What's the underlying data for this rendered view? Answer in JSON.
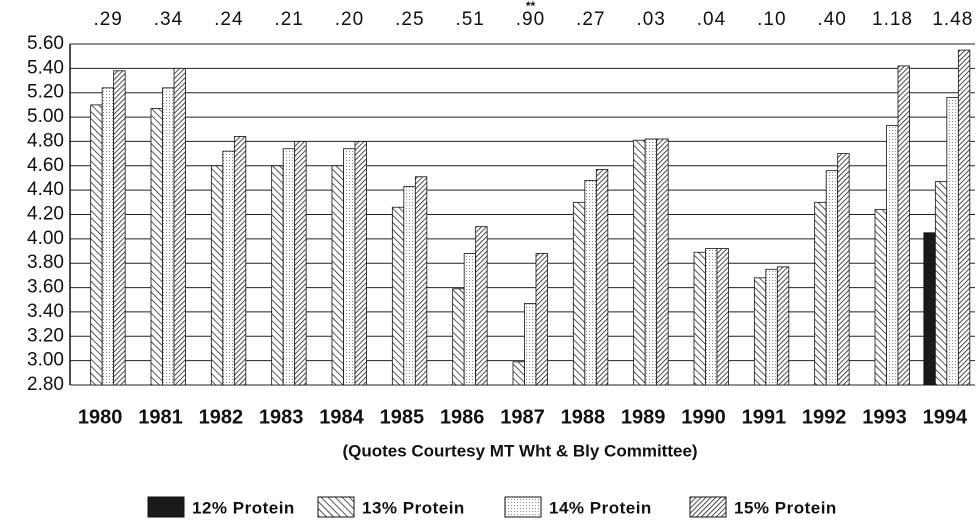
{
  "chart_data": {
    "type": "bar",
    "xlabel": "(Quotes Courtesy MT Wht & Bly Committee)",
    "categories": [
      "1980",
      "1981",
      "1982",
      "1983",
      "1984",
      "1985",
      "1986",
      "1987",
      "1988",
      "1989",
      "1990",
      "1991",
      "1992",
      "1993",
      "1994"
    ],
    "annotations": [
      ".29",
      ".34",
      ".24",
      ".21",
      ".20",
      ".25",
      ".51",
      ".90",
      ".27",
      ".03",
      ".04",
      ".10",
      ".40",
      "1.18",
      "1.48"
    ],
    "annotation_marks": [
      {
        "index": 7,
        "text": "**"
      }
    ],
    "series": [
      {
        "name": "12% Protein",
        "color": "#1a1a1a",
        "pattern": "solid",
        "values": [
          null,
          null,
          null,
          null,
          null,
          null,
          null,
          null,
          null,
          null,
          null,
          null,
          null,
          null,
          4.05
        ]
      },
      {
        "name": "13% Protein",
        "color": "#1a1a1a",
        "pattern": "hatch",
        "values": [
          5.1,
          5.07,
          4.6,
          4.6,
          4.6,
          4.26,
          3.59,
          2.99,
          4.3,
          4.81,
          3.89,
          3.68,
          4.3,
          4.24,
          4.47
        ]
      },
      {
        "name": "14% Protein",
        "color": "#1a1a1a",
        "pattern": "dots",
        "values": [
          5.24,
          5.24,
          4.72,
          4.74,
          4.74,
          4.43,
          3.88,
          3.47,
          4.48,
          4.82,
          3.92,
          3.75,
          4.56,
          4.93,
          5.16
        ]
      },
      {
        "name": "15% Protein",
        "color": "#1a1a1a",
        "pattern": "dense",
        "values": [
          5.38,
          5.4,
          4.84,
          4.8,
          4.8,
          4.51,
          4.1,
          3.88,
          4.57,
          4.82,
          3.92,
          3.77,
          4.7,
          5.42,
          5.55
        ]
      }
    ],
    "ylim": [
      2.8,
      5.6
    ],
    "yticks": [
      {
        "value": 2.8,
        "label": "2.80"
      },
      {
        "value": 3.0,
        "label": "3.00"
      },
      {
        "value": 3.2,
        "label": "3.20"
      },
      {
        "value": 3.4,
        "label": "3.40"
      },
      {
        "value": 3.6,
        "label": "3.60"
      },
      {
        "value": 3.8,
        "label": "3.80"
      },
      {
        "value": 4.0,
        "label": "4.00"
      },
      {
        "value": 4.2,
        "label": "4.20"
      },
      {
        "value": 4.4,
        "label": "4.40"
      },
      {
        "value": 4.6,
        "label": "4.60"
      },
      {
        "value": 4.8,
        "label": "4.80"
      },
      {
        "value": 5.0,
        "label": "5.00"
      },
      {
        "value": 5.2,
        "label": "5.20"
      },
      {
        "value": 5.4,
        "label": "5.40"
      },
      {
        "value": 5.6,
        "label": "5.60"
      }
    ],
    "grid": true
  }
}
